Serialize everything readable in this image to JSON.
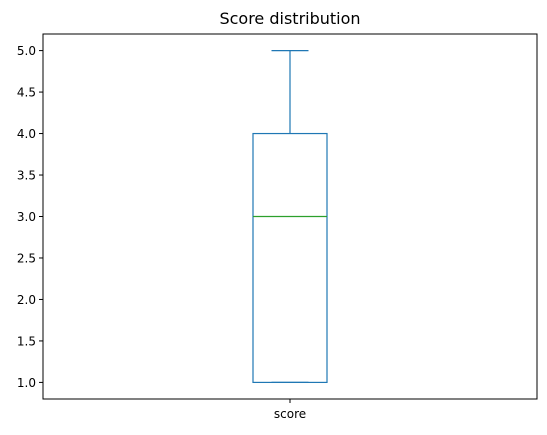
{
  "chart_data": {
    "type": "box",
    "title": "Score distribution",
    "xlabel": "",
    "ylabel": "",
    "categories": [
      "score"
    ],
    "boxes": [
      {
        "category": "score",
        "whisker_low": 1.0,
        "q1": 1.0,
        "median": 3.0,
        "q3": 4.0,
        "whisker_high": 5.0
      }
    ],
    "ylim": [
      0.8,
      5.2
    ],
    "yticks": [
      1.0,
      1.5,
      2.0,
      2.5,
      3.0,
      3.5,
      4.0,
      4.5,
      5.0
    ],
    "ytick_labels": [
      "1.0",
      "1.5",
      "2.0",
      "2.5",
      "3.0",
      "3.5",
      "4.0",
      "4.5",
      "5.0"
    ],
    "grid": false,
    "colors": {
      "box": "#1f77b4",
      "median": "#2ca02c",
      "axes": "#000000"
    }
  }
}
